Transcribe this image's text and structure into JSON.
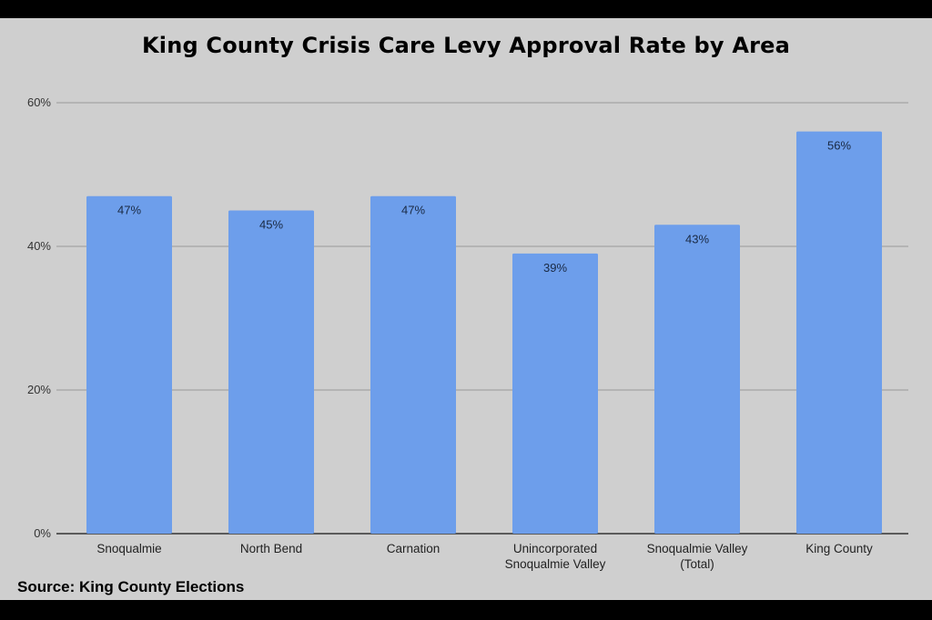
{
  "chart_data": {
    "type": "bar",
    "title": "King County Crisis Care Levy Approval Rate by Area",
    "categories": [
      "Snoqualmie",
      "North Bend",
      "Carnation",
      "Unincorporated Snoqualmie Valley",
      "Snoqualmie Valley (Total)",
      "King County"
    ],
    "category_lines": [
      [
        "Snoqualmie"
      ],
      [
        "North Bend"
      ],
      [
        "Carnation"
      ],
      [
        "Unincorporated",
        "Snoqualmie Valley"
      ],
      [
        "Snoqualmie Valley",
        "(Total)"
      ],
      [
        "King County"
      ]
    ],
    "values": [
      47,
      45,
      47,
      39,
      43,
      56
    ],
    "data_labels": [
      "47%",
      "45%",
      "47%",
      "39%",
      "43%",
      "56%"
    ],
    "ylim": [
      0,
      60
    ],
    "yticks": [
      0,
      20,
      40,
      60
    ],
    "ytick_labels": [
      "0%",
      "20%",
      "40%",
      "60%"
    ],
    "xlabel": "",
    "ylabel": "",
    "grid": true,
    "legend": "none",
    "colors": {
      "bar": "#6d9eeb",
      "background": "#cfcfcf",
      "grid": "#9a9a9a",
      "axis": "#333333"
    }
  },
  "source": "Source: King County Elections"
}
